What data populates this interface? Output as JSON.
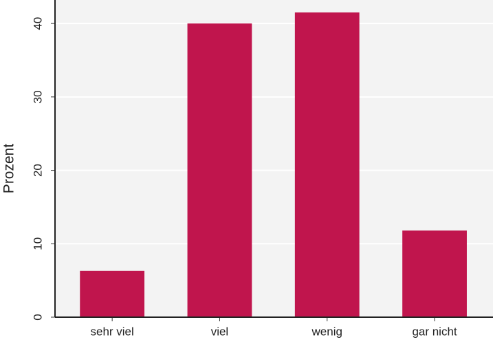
{
  "chart_data": {
    "type": "bar",
    "y_label": "Prozent",
    "categories": [
      "sehr viel",
      "viel",
      "wenig",
      "gar nicht"
    ],
    "values": [
      6.3,
      40.0,
      41.5,
      11.8
    ],
    "color": "#c0154d",
    "ylim": [
      0,
      43.2
    ],
    "yticks": [
      0,
      10,
      20,
      30,
      40
    ],
    "grid": true
  }
}
